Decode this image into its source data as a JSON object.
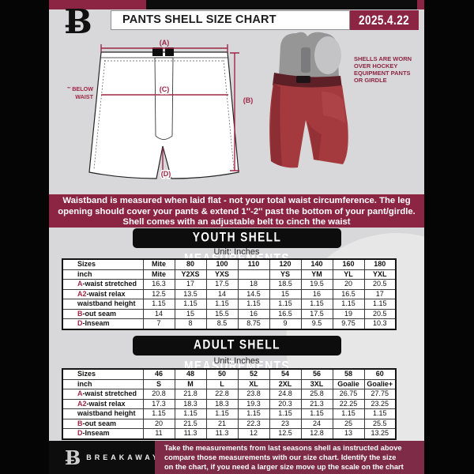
{
  "colors": {
    "maroon": "#8c2543",
    "maroon_dark": "#7e2b48",
    "accent_red": "#9e2746",
    "ink": "#0d0d0d",
    "page_gray": "#d8d8da",
    "shell_red": "#a53a3e"
  },
  "header": {
    "logo_glyph": "Ƀ",
    "title": "PANTS SHELL SIZE CHART",
    "date": "2025.4.22"
  },
  "diagram": {
    "label_a": "(A)",
    "label_b": "(B)",
    "label_c": "(C)",
    "label_d": "(D)",
    "waist_note_line1": "7'' BELOW",
    "waist_note_line2": "WAIST",
    "photo_note": "SHELLS ARE WORN\nOVER HOCKEY\nEQUIPMENT PANTS\nOR GIRDLE"
  },
  "notice": "Waistband is measured when laid flat - not your total waist circumference. The leg\nopening should cover your pants & extend 1''-2'' past the bottom of your pant/girdle.\nShell comes with an adjustable belt to cinch the waist",
  "youth": {
    "banner": "YOUTH SHELL MEASUREMENTS",
    "unit": "Unit: Inches",
    "table": {
      "rows": [
        {
          "prefix": "",
          "label": "Sizes",
          "values": [
            "Mite",
            "80",
            "100",
            "110",
            "120",
            "140",
            "160",
            "180"
          ]
        },
        {
          "prefix": "",
          "label": "inch",
          "values": [
            "Mite",
            "Y2XS",
            "YXS",
            "",
            "YS",
            "YM",
            "YL",
            "YXL"
          ]
        },
        {
          "prefix": "A",
          "label": "-waist stretched",
          "values": [
            "16.3",
            "17",
            "17.5",
            "18",
            "18.5",
            "19.5",
            "20",
            "20.5"
          ]
        },
        {
          "prefix": "A2",
          "label": "-waist relax",
          "values": [
            "12.5",
            "13.5",
            "14",
            "14.5",
            "15",
            "16",
            "16.5",
            "17"
          ]
        },
        {
          "prefix": "",
          "label": "waistband height",
          "values": [
            "1.15",
            "1.15",
            "1.15",
            "1.15",
            "1.15",
            "1.15",
            "1.15",
            "1.15"
          ]
        },
        {
          "prefix": "B",
          "label": "-out seam",
          "values": [
            "14",
            "15",
            "15.5",
            "16",
            "16.5",
            "17.5",
            "19",
            "20.5"
          ]
        },
        {
          "prefix": "D",
          "label": "-Inseam",
          "values": [
            "7",
            "8",
            "8.5",
            "8.75",
            "9",
            "9.5",
            "9.75",
            "10.3"
          ]
        }
      ]
    }
  },
  "adult": {
    "banner": "ADULT SHELL MEASUREMENTS",
    "unit": "Unit: Inches",
    "table": {
      "rows": [
        {
          "prefix": "",
          "label": "Sizes",
          "values": [
            "46",
            "48",
            "50",
            "52",
            "54",
            "56",
            "58",
            "60"
          ]
        },
        {
          "prefix": "",
          "label": "inch",
          "values": [
            "S",
            "M",
            "L",
            "XL",
            "2XL",
            "3XL",
            "Goalie",
            "Goalie+"
          ]
        },
        {
          "prefix": "A",
          "label": "-waist stretched",
          "values": [
            "20.8",
            "21.8",
            "22.8",
            "23.8",
            "24.8",
            "25.8",
            "26.75",
            "27.75"
          ]
        },
        {
          "prefix": "A2",
          "label": "-waist relax",
          "values": [
            "17.3",
            "18.3",
            "18.3",
            "19.3",
            "20.3",
            "21.3",
            "22.25",
            "23.25"
          ]
        },
        {
          "prefix": "",
          "label": "waistband height",
          "values": [
            "1.15",
            "1.15",
            "1.15",
            "1.15",
            "1.15",
            "1.15",
            "1.15",
            "1.15"
          ]
        },
        {
          "prefix": "B",
          "label": "-out seam",
          "values": [
            "20",
            "21.5",
            "21",
            "22.3",
            "23",
            "24",
            "25",
            "25.5"
          ]
        },
        {
          "prefix": "D",
          "label": "-Inseam",
          "values": [
            "11",
            "11.3",
            "11.3",
            "12",
            "12.5",
            "12.8",
            "13",
            "13.25"
          ]
        }
      ]
    }
  },
  "footer": {
    "logo_glyph": "Ƀ",
    "brand": "BREAKAWAY",
    "note": "Take the measurements from last seasons shell as instructed above\ncompare those measurements  with our size chart. Identify the size\non the chart, if you need a larger size move up the scale on the chart"
  }
}
